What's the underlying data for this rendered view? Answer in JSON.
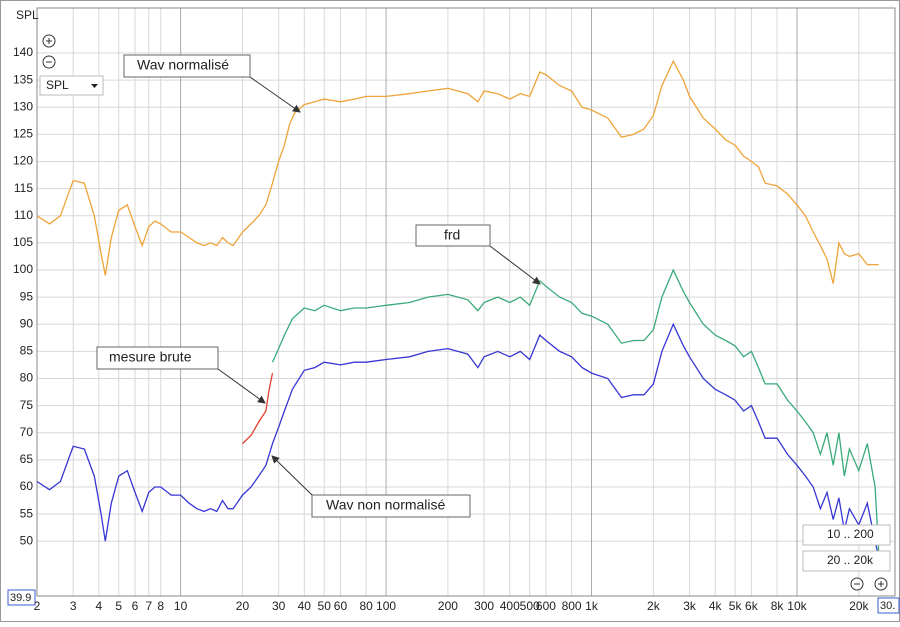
{
  "chart_data": {
    "type": "line",
    "y_label": "SPL",
    "log_x": true,
    "grid": true,
    "xlim": [
      2,
      30000
    ],
    "ylim": [
      39.9,
      148.3
    ],
    "xticks": [
      2,
      3,
      4,
      5,
      6,
      7,
      8,
      10,
      20,
      30,
      40,
      50,
      60,
      80,
      100,
      200,
      300,
      400,
      500,
      600,
      800,
      {
        "value": 1000,
        "label": "1k"
      },
      {
        "value": 2000,
        "label": "2k"
      },
      {
        "value": 3000,
        "label": "3k"
      },
      {
        "value": 4000,
        "label": "4k"
      },
      {
        "value": 5000,
        "label": "5k"
      },
      {
        "value": 6000,
        "label": "6k"
      },
      {
        "value": 8000,
        "label": "8k"
      },
      {
        "value": 10000,
        "label": "10k"
      },
      {
        "value": 20000,
        "label": "20k"
      }
    ],
    "yticks": [
      50,
      55,
      60,
      65,
      70,
      75,
      80,
      85,
      90,
      95,
      100,
      105,
      110,
      115,
      120,
      125,
      130,
      135,
      140
    ],
    "series": [
      {
        "name": "Wav normalisé",
        "color": "#efa43a",
        "x": [
          2,
          2.3,
          2.6,
          3,
          3.4,
          3.8,
          4.1,
          4.3,
          4.6,
          5,
          5.5,
          6,
          6.5,
          7,
          7.5,
          8,
          9,
          10,
          11,
          12,
          13,
          14,
          15,
          16,
          17,
          18,
          20,
          22,
          24,
          26,
          28,
          30,
          32,
          34,
          36,
          40,
          45,
          50,
          60,
          70,
          80,
          100,
          130,
          160,
          200,
          250,
          280,
          300,
          350,
          400,
          450,
          500,
          560,
          600,
          700,
          800,
          900,
          1000,
          1200,
          1400,
          1600,
          1800,
          2000,
          2200,
          2500,
          2800,
          3000,
          3500,
          4000,
          4500,
          5000,
          5500,
          6000,
          6500,
          7000,
          8000,
          9000,
          10000,
          11000,
          12000,
          13000,
          14000,
          15000,
          16000,
          17000,
          18000,
          20000,
          22000,
          25000
        ],
        "values": [
          110,
          108.5,
          110,
          116.5,
          116,
          110,
          103,
          99,
          106,
          111,
          112,
          108,
          104.5,
          108,
          109,
          108.5,
          107,
          107,
          106,
          105,
          104.5,
          105,
          104.5,
          106,
          105,
          104.5,
          107,
          108.5,
          110,
          112,
          116,
          120,
          123,
          127,
          129,
          130.5,
          131,
          131.5,
          131,
          131.5,
          132,
          132,
          132.5,
          133,
          133.5,
          132.5,
          131,
          133,
          132.5,
          131.5,
          132.5,
          132,
          136.5,
          136,
          134,
          133,
          130,
          129.5,
          128,
          124.5,
          125,
          126,
          128.5,
          134,
          138.5,
          135,
          132,
          128,
          126,
          124,
          123,
          121,
          120,
          119,
          116,
          115.5,
          114,
          112,
          110,
          107,
          104.5,
          102,
          97.5,
          105,
          103,
          102.5,
          103,
          101,
          101
        ]
      },
      {
        "name": "frd",
        "color": "#3aaa7a",
        "x": [
          28,
          30,
          32,
          35,
          40,
          45,
          50,
          60,
          70,
          80,
          100,
          130,
          160,
          200,
          250,
          280,
          300,
          350,
          400,
          450,
          500,
          560,
          600,
          700,
          800,
          900,
          1000,
          1200,
          1400,
          1600,
          1800,
          2000,
          2200,
          2500,
          2800,
          3000,
          3500,
          4000,
          4500,
          5000,
          5500,
          6000,
          6500,
          7000,
          8000,
          9000,
          10000,
          11000,
          12000,
          13000,
          14000,
          15000,
          16000,
          17000,
          18000,
          20000,
          22000,
          24000,
          25000
        ],
        "values": [
          83,
          85.5,
          88,
          91,
          93,
          92.5,
          93.5,
          92.5,
          93,
          93,
          93.5,
          94,
          95,
          95.5,
          94.5,
          92.5,
          94,
          95,
          94,
          95,
          93.5,
          98,
          97,
          95,
          94,
          92,
          91.5,
          90,
          86.5,
          87,
          87,
          89,
          95,
          100,
          96,
          94,
          90,
          88,
          87,
          86,
          84,
          85,
          82,
          79,
          79,
          76,
          74,
          72,
          70,
          66,
          70,
          64,
          70,
          62,
          67,
          63,
          68,
          60,
          48
        ]
      },
      {
        "name": "mesure brute",
        "color": "#e0412e",
        "x": [
          20,
          22,
          24,
          26,
          27,
          28
        ],
        "values": [
          68,
          69.5,
          72,
          74,
          78,
          81
        ]
      },
      {
        "name": "Wav non normalisé",
        "color": "#3636d4",
        "x": [
          2,
          2.3,
          2.6,
          3,
          3.4,
          3.8,
          4.1,
          4.3,
          4.6,
          5,
          5.5,
          6,
          6.5,
          7,
          7.5,
          8,
          9,
          10,
          11,
          12,
          13,
          14,
          15,
          16,
          17,
          18,
          20,
          22,
          24,
          26,
          28,
          30,
          32,
          35,
          40,
          45,
          50,
          60,
          70,
          80,
          100,
          130,
          160,
          200,
          250,
          280,
          300,
          350,
          400,
          450,
          500,
          560,
          600,
          700,
          800,
          900,
          1000,
          1200,
          1400,
          1600,
          1800,
          2000,
          2200,
          2500,
          2800,
          3000,
          3500,
          4000,
          4500,
          5000,
          5500,
          6000,
          6500,
          7000,
          8000,
          9000,
          10000,
          11000,
          12000,
          13000,
          14000,
          15000,
          16000,
          17000,
          18000,
          20000,
          22000,
          24000,
          25000
        ],
        "values": [
          61,
          59.5,
          61,
          67.5,
          67,
          62,
          55,
          50,
          57,
          62,
          63,
          59,
          55.5,
          59,
          60,
          60,
          58.5,
          58.5,
          57,
          56,
          55.5,
          56,
          55.5,
          57.5,
          56,
          56,
          58.5,
          60,
          62,
          64,
          68,
          71,
          74,
          78,
          81.5,
          82,
          83,
          82.5,
          83,
          83,
          83.5,
          84,
          85,
          85.5,
          84.5,
          82,
          84,
          85,
          84,
          85,
          83.5,
          88,
          87,
          85,
          84,
          82,
          81,
          80,
          76.5,
          77,
          77,
          79,
          85,
          90,
          86,
          84,
          80,
          78,
          77,
          76,
          74,
          75,
          72,
          69,
          69,
          66,
          64,
          62,
          60,
          56,
          59,
          54,
          58,
          52,
          56,
          53,
          57,
          50,
          47
        ]
      }
    ]
  },
  "controls": {
    "source_select": "SPL",
    "zoom_a": "10 .. 200",
    "zoom_b": "20 .. 20k",
    "x_end_label": "30."
  }
}
